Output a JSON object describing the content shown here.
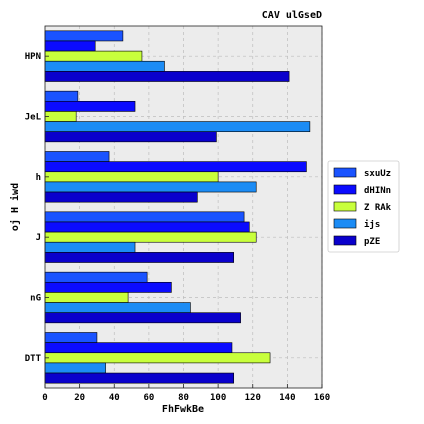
{
  "chart_data": {
    "type": "bar",
    "orientation": "horizontal",
    "title": "CAV ulGseD",
    "xlabel": "FhFwkBe",
    "ylabel": "oj H iwd",
    "xlim": [
      0,
      160
    ],
    "xticks": [
      "0",
      "20",
      "40",
      "60",
      "80",
      "100",
      "120",
      "140",
      "160"
    ],
    "categories": [
      "HPN",
      "JeL",
      "h",
      "J",
      "nG",
      "DTT"
    ],
    "series": [
      {
        "name": "sxuUz",
        "color": "#1a53ff",
        "values": [
          45,
          19,
          37,
          115,
          59,
          30
        ]
      },
      {
        "name": "dHINn",
        "color": "#0b0bff",
        "values": [
          29,
          52,
          151,
          118,
          73,
          108
        ]
      },
      {
        "name": "Z RAk",
        "color": "#c8ff3c",
        "values": [
          56,
          18,
          100,
          122,
          48,
          130
        ]
      },
      {
        "name": "ijs",
        "color": "#1c8cf5",
        "values": [
          69,
          153,
          122,
          52,
          84,
          35
        ]
      },
      {
        "name": "pZE",
        "color": "#0a00cc",
        "values": [
          141,
          99,
          88,
          109,
          113,
          109
        ]
      }
    ],
    "grid": true,
    "legend_position": "right"
  }
}
